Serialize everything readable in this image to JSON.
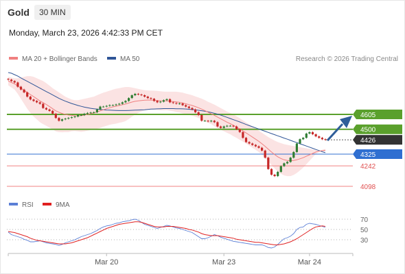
{
  "header": {
    "asset": "Gold",
    "timeframe": "30 MIN"
  },
  "datetime": "Monday, March 23, 2026 4:42:33 PM CET",
  "legend_main": [
    {
      "label": "MA 20 + Bollinger Bands",
      "color": "#f08080"
    },
    {
      "label": "MA 50",
      "color": "#2f5597"
    }
  ],
  "credit": "Research © 2026 Trading Central",
  "legend_rsi": [
    {
      "label": "RSI",
      "color": "#5b7fd6"
    },
    {
      "label": "9MA",
      "color": "#e02020"
    }
  ],
  "colors": {
    "up": "#2e7d32",
    "down": "#c62828",
    "resistance": "#5aa02c",
    "pivot": "#2f6fd1",
    "support": "#f08080",
    "arrow": "#2f5e99",
    "current": "#333333"
  },
  "chart_data": [
    {
      "type": "candlestick",
      "x_tick_labels": [
        "Mar 20",
        "Mar 23",
        "Mar 24"
      ],
      "levels": [
        {
          "value": 4605,
          "label": "4605",
          "kind": "resistance"
        },
        {
          "value": 4500,
          "label": "4500",
          "kind": "resistance"
        },
        {
          "value": 4426,
          "label": "4426",
          "kind": "current"
        },
        {
          "value": 4325,
          "label": "4325",
          "kind": "pivot"
        },
        {
          "value": 4242,
          "label": "4242",
          "kind": "support"
        },
        {
          "value": 4098,
          "label": "4098",
          "kind": "support"
        }
      ],
      "close": [
        4850,
        4840,
        4830,
        4800,
        4780,
        4760,
        4730,
        4710,
        4700,
        4690,
        4680,
        4650,
        4640,
        4630,
        4610,
        4580,
        4560,
        4570,
        4575,
        4580,
        4585,
        4590,
        4600,
        4600,
        4610,
        4615,
        4618,
        4620,
        4640,
        4660,
        4660,
        4665,
        4670,
        4670,
        4675,
        4680,
        4690,
        4700,
        4720,
        4740,
        4750,
        4745,
        4740,
        4730,
        4720,
        4715,
        4700,
        4690,
        4695,
        4705,
        4712,
        4690,
        4685,
        4680,
        4682,
        4670,
        4660,
        4650,
        4640,
        4620,
        4600,
        4560,
        4560,
        4555,
        4560,
        4550,
        4520,
        4510,
        4520,
        4525,
        4525,
        4520,
        4500,
        4480,
        4440,
        4410,
        4400,
        4390,
        4380,
        4370,
        4350,
        4300,
        4220,
        4180,
        4170,
        4200,
        4240,
        4260,
        4270,
        4300,
        4340,
        4400,
        4430,
        4440,
        4470,
        4480,
        4465,
        4450,
        4440,
        4430,
        4426
      ],
      "ma20": [
        4840,
        4830,
        4820,
        4805,
        4790,
        4775,
        4760,
        4745,
        4730,
        4715,
        4700,
        4688,
        4675,
        4660,
        4645,
        4630,
        4620,
        4612,
        4605,
        4600,
        4598,
        4596,
        4595,
        4596,
        4600,
        4605,
        4610,
        4615,
        4622,
        4630,
        4638,
        4645,
        4652,
        4658,
        4663,
        4668,
        4673,
        4678,
        4685,
        4692,
        4697,
        4700,
        4703,
        4705,
        4706,
        4706,
        4705,
        4703,
        4701,
        4700,
        4700,
        4698,
        4696,
        4693,
        4690,
        4685,
        4680,
        4674,
        4668,
        4660,
        4652,
        4642,
        4632,
        4620,
        4610,
        4598,
        4586,
        4574,
        4562,
        4550,
        4540,
        4528,
        4516,
        4502,
        4488,
        4474,
        4460,
        4445,
        4430,
        4415,
        4398,
        4380,
        4360,
        4340,
        4322,
        4306,
        4294,
        4285,
        4280,
        4278,
        4280,
        4285,
        4292,
        4300,
        4310,
        4320,
        4330,
        4340,
        4345,
        4350,
        4352
      ],
      "bb_upper": [
        4870,
        4865,
        4860,
        4860,
        4865,
        4870,
        4875,
        4875,
        4870,
        4860,
        4850,
        4840,
        4825,
        4808,
        4790,
        4775,
        4760,
        4745,
        4730,
        4720,
        4710,
        4705,
        4705,
        4710,
        4715,
        4720,
        4725,
        4730,
        4740,
        4750,
        4758,
        4765,
        4772,
        4780,
        4786,
        4790,
        4795,
        4798,
        4798,
        4795,
        4790,
        4785,
        4780,
        4776,
        4774,
        4773,
        4772,
        4770,
        4768,
        4766,
        4765,
        4765,
        4765,
        4765,
        4762,
        4758,
        4752,
        4746,
        4740,
        4732,
        4724,
        4716,
        4706,
        4694,
        4684,
        4674,
        4662,
        4650,
        4638,
        4625,
        4615,
        4605,
        4592,
        4578,
        4563,
        4548,
        4535,
        4520,
        4505,
        4490,
        4475,
        4460,
        4445,
        4432,
        4420,
        4410,
        4402,
        4395,
        4390,
        4386,
        4382,
        4378,
        4374,
        4370,
        4366,
        4362,
        4358,
        4354,
        4350,
        4346,
        4342
      ],
      "bb_lower": [
        4810,
        4795,
        4780,
        4750,
        4715,
        4680,
        4645,
        4615,
        4590,
        4570,
        4550,
        4536,
        4525,
        4512,
        4500,
        4485,
        4480,
        4479,
        4480,
        4480,
        4486,
        4487,
        4485,
        4482,
        4485,
        4490,
        4495,
        4500,
        4504,
        4510,
        4518,
        4525,
        4532,
        4536,
        4540,
        4546,
        4551,
        4558,
        4572,
        4589,
        4604,
        4615,
        4626,
        4634,
        4638,
        4639,
        4638,
        4636,
        4634,
        4634,
        4635,
        4631,
        4627,
        4621,
        4618,
        4612,
        4608,
        4602,
        4596,
        4588,
        4580,
        4568,
        4558,
        4546,
        4536,
        4522,
        4510,
        4498,
        4486,
        4475,
        4465,
        4451,
        4440,
        4426,
        4413,
        4400,
        4385,
        4370,
        4355,
        4340,
        4321,
        4300,
        4275,
        4248,
        4224,
        4202,
        4186,
        4175,
        4170,
        4170,
        4178,
        4192,
        4210,
        4230,
        4254,
        4278,
        4302,
        4326,
        4340,
        4354,
        4362
      ],
      "ma50": [
        4900,
        4895,
        4885,
        4875,
        4862,
        4850,
        4838,
        4826,
        4814,
        4802,
        4790,
        4778,
        4766,
        4754,
        4742,
        4730,
        4718,
        4708,
        4698,
        4690,
        4682,
        4675,
        4668,
        4662,
        4656,
        4652,
        4648,
        4645,
        4642,
        4640,
        4638,
        4636,
        4635,
        4634,
        4633,
        4632,
        4632,
        4632,
        4633,
        4634,
        4635,
        4636,
        4637,
        4638,
        4640,
        4642,
        4643,
        4644,
        4645,
        4646,
        4646,
        4646,
        4646,
        4645,
        4645,
        4644,
        4643,
        4641,
        4639,
        4637,
        4634,
        4631,
        4627,
        4623,
        4618,
        4613,
        4607,
        4600,
        4592,
        4584,
        4576,
        4568,
        4560,
        4552,
        4543,
        4534,
        4526,
        4518,
        4510,
        4502,
        4494,
        4486,
        4478,
        4470,
        4462,
        4454,
        4446,
        4438,
        4430,
        4422,
        4414,
        4406,
        4398,
        4390,
        4382,
        4374,
        4366,
        4358,
        4350,
        4342,
        4335
      ]
    },
    {
      "type": "line",
      "name": "RSI",
      "y_tick_labels": [
        "70",
        "50",
        "30"
      ],
      "ylim": [
        0,
        100
      ],
      "rsi": [
        45,
        40,
        38,
        36,
        34,
        31,
        29,
        26,
        26,
        27,
        28,
        26,
        24,
        23,
        22,
        21,
        19,
        21,
        24,
        26,
        28,
        30,
        33,
        36,
        38,
        40,
        42,
        45,
        48,
        52,
        55,
        57,
        58,
        60,
        62,
        63,
        65,
        66,
        67,
        69,
        70,
        68,
        64,
        60,
        58,
        56,
        54,
        52,
        54,
        56,
        58,
        57,
        55,
        53,
        52,
        50,
        48,
        46,
        44,
        40,
        36,
        32,
        32,
        34,
        37,
        40,
        38,
        35,
        33,
        31,
        29,
        27,
        26,
        25,
        24,
        23,
        22,
        21,
        20,
        20,
        20,
        18,
        15,
        14,
        16,
        21,
        27,
        32,
        34,
        37,
        42,
        50,
        54,
        55,
        60,
        62,
        61,
        60,
        58,
        56,
        54
      ],
      "ma9": [
        46,
        45,
        44,
        42,
        40,
        38,
        36,
        33,
        31,
        29,
        28,
        27,
        26,
        25,
        24,
        23,
        22,
        22,
        22,
        23,
        24,
        26,
        28,
        30,
        32,
        34,
        37,
        40,
        43,
        46,
        49,
        52,
        54,
        56,
        58,
        60,
        61,
        62,
        63,
        64,
        65,
        65,
        64,
        62,
        60,
        58,
        56,
        55,
        55,
        55,
        56,
        56,
        56,
        55,
        54,
        53,
        52,
        50,
        49,
        47,
        45,
        42,
        40,
        39,
        38,
        38,
        38,
        37,
        36,
        35,
        34,
        33,
        31,
        30,
        29,
        28,
        27,
        26,
        25,
        25,
        24,
        23,
        22,
        21,
        20,
        20,
        21,
        22,
        24,
        26,
        29,
        32,
        36,
        40,
        44,
        48,
        52,
        55,
        56,
        57,
        56
      ]
    }
  ]
}
